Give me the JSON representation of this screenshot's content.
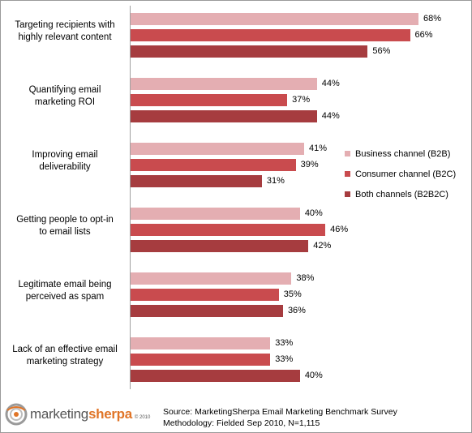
{
  "chart_data": {
    "type": "bar",
    "orientation": "horizontal",
    "categories": [
      [
        "Targeting recipients with",
        "highly relevant content"
      ],
      [
        "Quantifying email",
        "marketing ROI"
      ],
      [
        "Improving email",
        "deliverability"
      ],
      [
        "Getting people to opt-in",
        "to email lists"
      ],
      [
        "Legitimate email being",
        "perceived as spam"
      ],
      [
        "Lack of an effective email",
        "marketing strategy"
      ]
    ],
    "series": [
      {
        "name": "Business channel (B2B)",
        "color": "#e4aeb2",
        "values": [
          68,
          44,
          41,
          40,
          38,
          33
        ]
      },
      {
        "name": "Consumer channel (B2C)",
        "color": "#c94b4e",
        "values": [
          66,
          37,
          39,
          46,
          35,
          33
        ]
      },
      {
        "name": "Both channels (B2B2C)",
        "color": "#a63c3f",
        "values": [
          56,
          44,
          31,
          42,
          36,
          40
        ]
      }
    ],
    "value_suffix": "%",
    "xlim": [
      0,
      70
    ],
    "legend_position": "right",
    "grid": false
  },
  "footer": {
    "logo_part1": "marketing",
    "logo_part2": "sherpa",
    "logo_copyright": "© 2010",
    "source_line1": "Source: MarketingSherpa Email Marketing Benchmark Survey",
    "source_line2": "Methodology: Fielded Sep 2010, N=1,115"
  }
}
